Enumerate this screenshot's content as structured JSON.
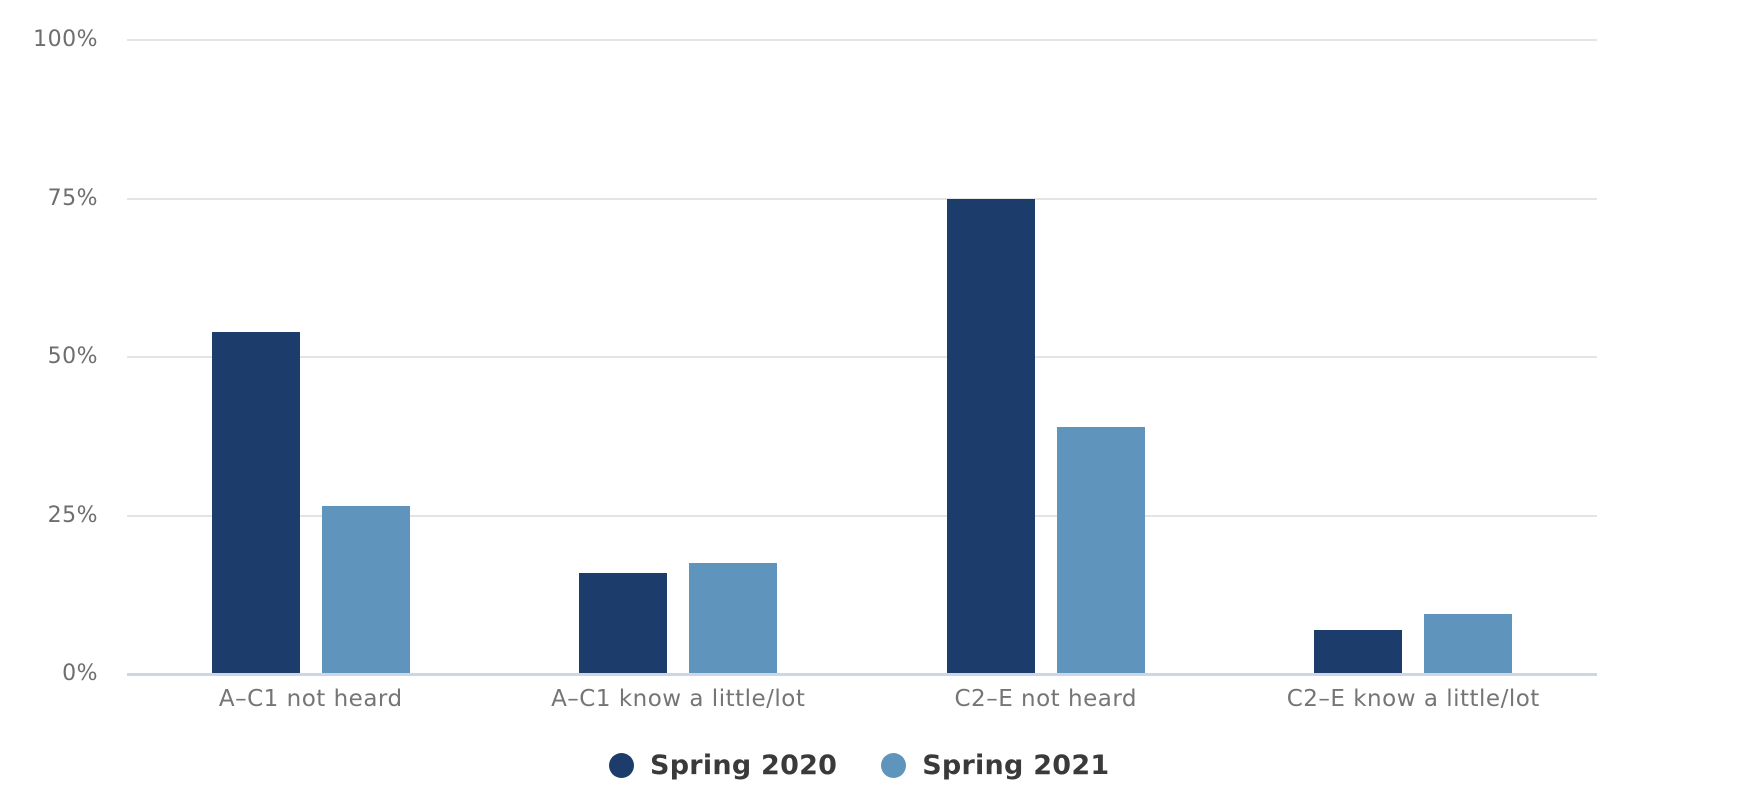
{
  "chart_data": {
    "type": "bar",
    "title": "",
    "categories": [
      "A–C1 not heard",
      "A–C1 know a little/lot",
      "C2–E not heard",
      "C2–E know a little/lot"
    ],
    "series": [
      {
        "name": "Spring 2020",
        "color": "#1c3d6c",
        "values": [
          54,
          16,
          75,
          7
        ]
      },
      {
        "name": "Spring 2021",
        "color": "#5f95bd",
        "values": [
          26.5,
          17.5,
          39,
          9.5
        ]
      }
    ],
    "y_axis": {
      "unit": "%",
      "min": 0,
      "max": 100,
      "tick_values": [
        0,
        25,
        50,
        75,
        100
      ],
      "tick_labels": [
        "0%",
        "25%",
        "50%",
        "75%",
        "100%"
      ]
    },
    "grid": true,
    "legend_position": "bottom"
  },
  "colors": {
    "background": "#ffffff",
    "gridline": "#e4e4e4",
    "baseline": "#cdd6e4",
    "tick_label": "#6e6e6e",
    "category_label": "#757575",
    "legend_label": "#3a3a3a"
  }
}
